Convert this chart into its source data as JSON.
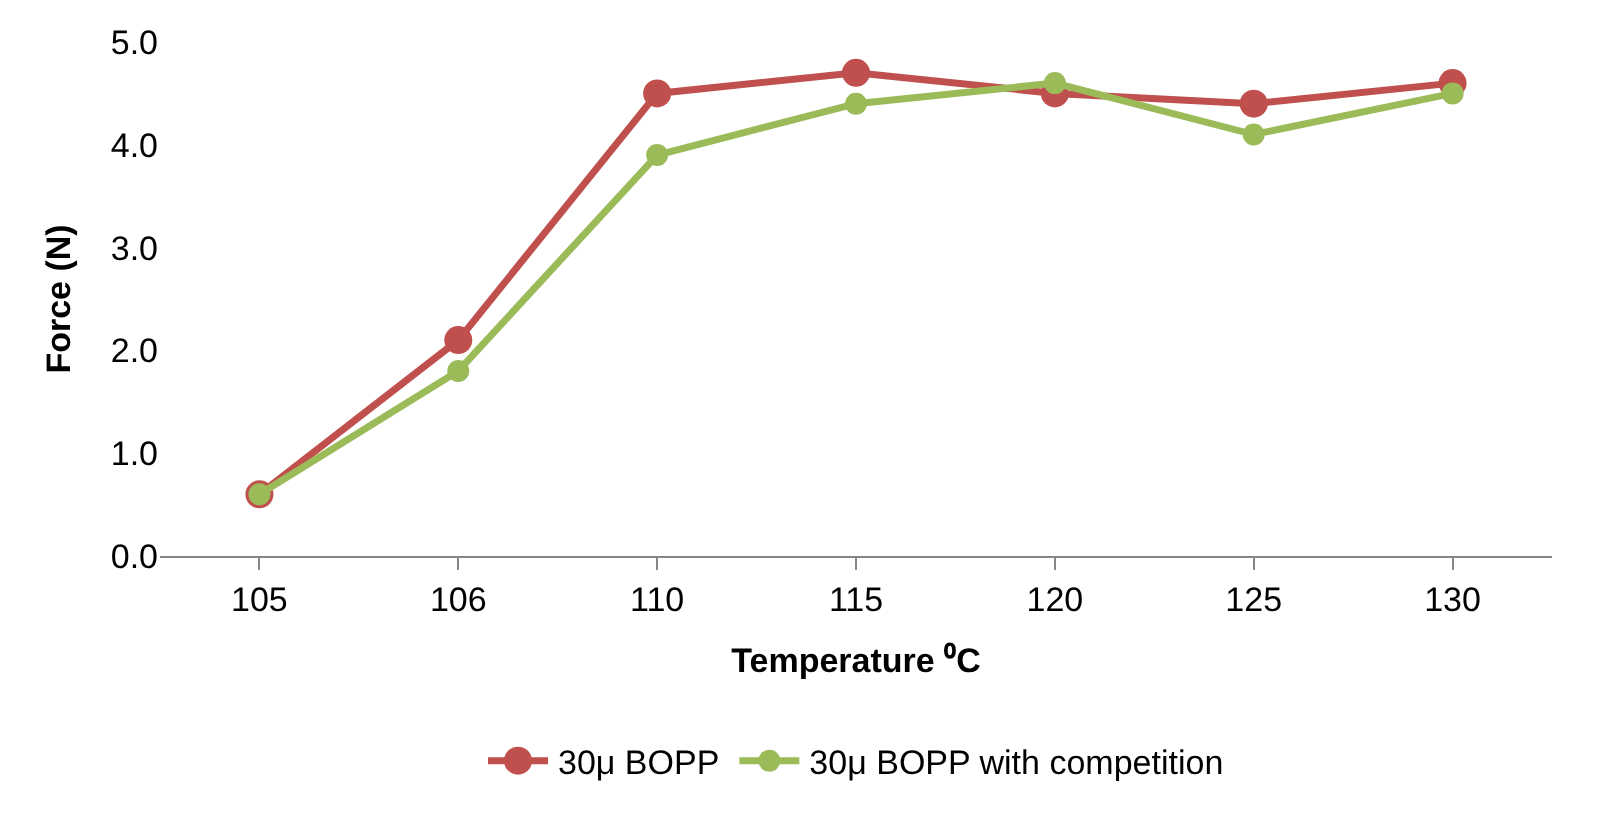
{
  "chart_data": {
    "type": "line",
    "xlabel": "Temperature ⁰C",
    "ylabel": "Force (N)",
    "categories": [
      "105",
      "106",
      "110",
      "115",
      "120",
      "125",
      "130"
    ],
    "series": [
      {
        "name": "30μ BOPP",
        "color": "#c0504d",
        "values": [
          0.6,
          2.1,
          4.5,
          4.7,
          4.5,
          4.4,
          4.6
        ]
      },
      {
        "name": "30μ BOPP with competition",
        "color": "#9bbb59",
        "values": [
          0.6,
          1.8,
          3.9,
          4.4,
          4.6,
          4.1,
          4.5
        ]
      }
    ],
    "ylim": [
      0,
      5
    ],
    "yticks": [
      {
        "value": 0,
        "label": "0.0"
      },
      {
        "value": 1,
        "label": "1.0"
      },
      {
        "value": 2,
        "label": "2.0"
      },
      {
        "value": 3,
        "label": "3.0"
      },
      {
        "value": 4,
        "label": "4.0"
      },
      {
        "value": 5,
        "label": "5.0"
      }
    ],
    "grid": false,
    "legend": "bottom",
    "marker": "circle",
    "line_style": "solid"
  }
}
